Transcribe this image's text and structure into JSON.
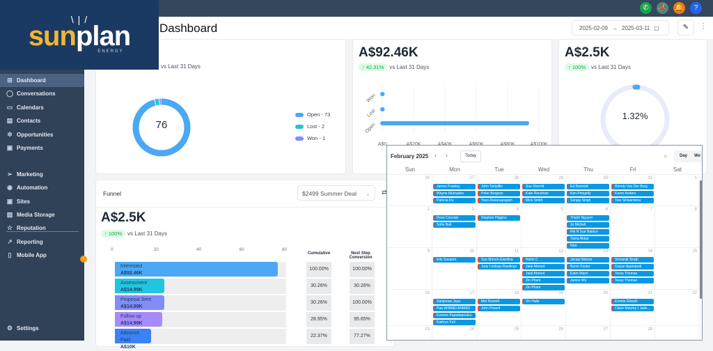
{
  "brand": {
    "name_sun": "sun",
    "name_plan": "plan",
    "tagline": "ENERGY"
  },
  "topbar": {
    "icons": [
      {
        "name": "phone-icon",
        "color": "#16a34a",
        "glyph": "✆"
      },
      {
        "name": "megaphone-icon",
        "color": "#4a8a78",
        "glyph": "📣"
      },
      {
        "name": "bell-icon",
        "color": "#f97316",
        "glyph": "🔔"
      },
      {
        "name": "help-icon",
        "color": "#2563eb",
        "glyph": "?"
      }
    ]
  },
  "sidebar": {
    "items": [
      {
        "label": "Dashboard",
        "icon": "⊞",
        "active": true
      },
      {
        "label": "Conversations",
        "icon": "◯"
      },
      {
        "label": "Calendars",
        "icon": "▭"
      },
      {
        "label": "Contacts",
        "icon": "▤"
      },
      {
        "label": "Opportunities",
        "icon": "✲"
      },
      {
        "label": "Payments",
        "icon": "▣"
      },
      {
        "label": "Marketing",
        "icon": "➢"
      },
      {
        "label": "Automation",
        "icon": "◉"
      },
      {
        "label": "Sites",
        "icon": "▣"
      },
      {
        "label": "Media Storage",
        "icon": "▨"
      },
      {
        "label": "Reputation",
        "icon": "☆"
      },
      {
        "label": "Reporting",
        "icon": "↗"
      },
      {
        "label": "Mobile App",
        "icon": "▯"
      }
    ],
    "settings": "Settings"
  },
  "header": {
    "title": "Dashboard",
    "date_from": "2025-02-09",
    "date_to": "2025-03-11"
  },
  "cards": {
    "status": {
      "vs": "vs Last 31 Days",
      "total": "76",
      "legend": [
        "Open - 73",
        "Lost - 2",
        "Won - 1"
      ],
      "colors": [
        "#4aa8f5",
        "#22c5d8",
        "#818cf8"
      ]
    },
    "value": {
      "amount": "A$92.46K",
      "delta": "↑ 42.31%",
      "vs": "vs Last 31 Days"
    },
    "conversion": {
      "amount": "A$2.5K",
      "delta": "↑ 100%",
      "vs": "vs Last 31 Days",
      "rate": "1.32%",
      "rate_value": 1.32
    }
  },
  "chart_data": [
    {
      "type": "pie",
      "title": "Opportunity Status",
      "categories": [
        "Open",
        "Lost",
        "Won"
      ],
      "values": [
        73,
        2,
        1
      ],
      "center_label": "76"
    },
    {
      "type": "bar",
      "orientation": "horizontal",
      "categories": [
        "Open",
        "Lost",
        "Won"
      ],
      "values": [
        92460,
        0,
        0
      ],
      "x_ticks": [
        "A$0",
        "A$20K",
        "A$40K",
        "A$60K",
        "A$80K",
        "A$100K"
      ],
      "xlim": [
        0,
        100000
      ]
    },
    {
      "type": "bar",
      "title": "Funnel",
      "orientation": "horizontal",
      "x_ticks": [
        "0",
        "20",
        "40",
        "60",
        "80"
      ],
      "xlim": [
        0,
        80
      ],
      "stages": [
        {
          "label": "Interested",
          "amount": "A$92.46K",
          "count": 76,
          "color": "#4aa8f5",
          "cumulative": "100.00%",
          "next": "100.00%"
        },
        {
          "label": "Assessment",
          "amount": "A$14.99K",
          "count": 23,
          "color": "#22c5e0",
          "cumulative": "30.26%",
          "next": "30.26%"
        },
        {
          "label": "Proposal Sent",
          "amount": "A$14.99K",
          "count": 23,
          "color": "#818cf8",
          "cumulative": "30.26%",
          "next": "100.00%"
        },
        {
          "label": "Follow up",
          "amount": "A$14.99K",
          "count": 22,
          "color": "#a78bfa",
          "cumulative": "28.95%",
          "next": "95.65%"
        },
        {
          "label": "Advance Paid",
          "amount": "A$10K",
          "count": 17,
          "color": "#3b82f6",
          "cumulative": "22.37%",
          "next": "77.27%"
        }
      ]
    }
  ],
  "funnel": {
    "title": "Funnel",
    "selected": "$2499 Summer Deal",
    "amount": "A$2.5K",
    "delta": "↑ 100%",
    "vs": "vs Last 31 Days",
    "col_cumulative": "Cumulative",
    "col_next": "Next Step Conversion"
  },
  "calendar": {
    "month": "February 2025",
    "today": "Today",
    "views": [
      "Day",
      "We"
    ],
    "days": [
      "Sun",
      "Mon",
      "Tue",
      "Wed",
      "Thu",
      "Fri",
      "Sat"
    ],
    "weeks": [
      {
        "dates": [
          "26",
          "27",
          "28",
          "29",
          "30",
          "31",
          "1"
        ],
        "events": [
          [],
          [
            "James Frawley",
            "Wayne Murraylee",
            "Patricia Du"
          ],
          [
            "John Tsiripillis",
            "Peter Burgess",
            "Yaso Rasanayagam"
          ],
          [
            "Sue Sherritt",
            "Kate Renshaw",
            "Mick Smith"
          ],
          [
            "Ed Barwald",
            "Ken Pengelly",
            "Sanjay Singh"
          ],
          [
            "Wendy Van Der Burg",
            "Karen Anders",
            "Tise Siriwardena"
          ],
          []
        ]
      },
      {
        "dates": [
          "2",
          "3",
          "4",
          "5",
          "6",
          "7",
          "8"
        ],
        "events": [
          [],
          [
            "Rosa Cicerale",
            "Sofie Bult"
          ],
          [
            "Stephen Higgins"
          ],
          [],
          [
            "Thanh Nguyen",
            "Jo Michell",
            "Rik N Sue Naidoo",
            "Yama Akbar",
            "Nick"
          ],
          [],
          []
        ]
      },
      {
        "dates": [
          "9",
          "10",
          "11",
          "12",
          "13",
          "14",
          "15"
        ],
        "events": [
          [],
          [
            "Edy Susanto"
          ],
          [
            "Sue Monck-Giardina",
            "Judy Lindsay-Rawlings"
          ],
          [
            "Nalini C",
            "Jalal Ahmed",
            "Jalal Ahmed",
            "Zin Pham",
            "Zin Pham"
          ],
          [
            "Jacqui Nelson",
            "Byron Foster",
            "Eden Ward",
            "Janice Wu"
          ],
          [
            "Simranjit Singh",
            "Gayan Agampodi",
            "Tessy Thomas",
            "Tessy Thomas"
          ],
          []
        ]
      },
      {
        "dates": [
          "16",
          "17",
          "18",
          "19",
          "20",
          "21",
          "22"
        ],
        "events": [
          [],
          [
            "Sanjeewa Jaya",
            "Paiz AHMAD AHMAD",
            "Evonne Papadopoulos",
            "Kathryn Fell"
          ],
          [
            "Mel Russell",
            "John Powell"
          ],
          [
            "Viv Halls"
          ],
          [],
          [
            "Emmie Elbadri",
            "Claire Murphy ( Jade..."
          ],
          []
        ]
      },
      {
        "dates": [
          "23",
          "24",
          "25",
          "26",
          "27",
          "28",
          ""
        ],
        "events": [
          [],
          [],
          [],
          [],
          [],
          [],
          []
        ]
      }
    ]
  }
}
